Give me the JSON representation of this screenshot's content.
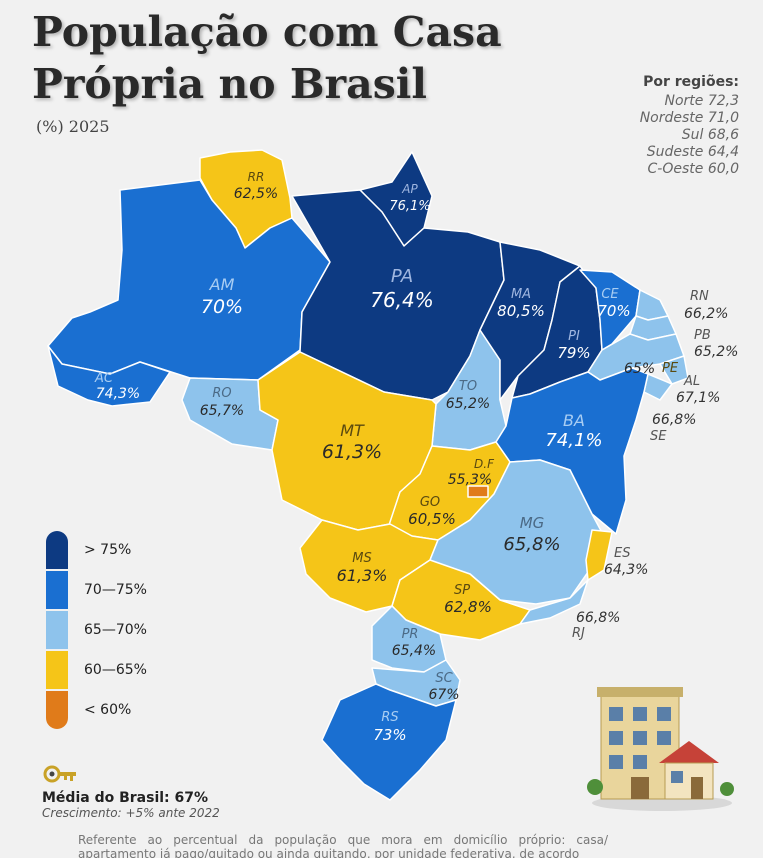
{
  "title_line1": "População com Casa",
  "title_line2": "Própria no Brasil",
  "subtitle": "(%) 2025",
  "regions": {
    "heading": "Por regiões:",
    "items": [
      {
        "label": "Norte 72,3"
      },
      {
        "label": "Nordeste 71,0"
      },
      {
        "label": "Sul 68,6"
      },
      {
        "label": "Sudeste 64,4"
      },
      {
        "label": "C-Oeste 60,0"
      }
    ]
  },
  "colors": {
    "gt75": "#0d3a82",
    "r70_75": "#1a6fd1",
    "r65_70": "#8ec3ec",
    "r60_65": "#f5c518",
    "lt60": "#e07b1a"
  },
  "states": {
    "RR": {
      "code": "RR",
      "value": "62,5%"
    },
    "AP": {
      "code": "AP",
      "value": "76,1%"
    },
    "AM": {
      "code": "AM",
      "value": "70%"
    },
    "PA": {
      "code": "PA",
      "value": "76,4%"
    },
    "MA": {
      "code": "MA",
      "value": "80,5%"
    },
    "CE": {
      "code": "CE",
      "value": "70%"
    },
    "RN": {
      "code": "RN",
      "value": "66,2%"
    },
    "PB": {
      "code": "PB",
      "value": "65,2%"
    },
    "PI": {
      "code": "PI",
      "value": "79%"
    },
    "PE": {
      "code": "PE",
      "value": "65%"
    },
    "AL": {
      "code": "AL",
      "value": "67,1%"
    },
    "SE": {
      "code": "SE",
      "value": "66,8%"
    },
    "AC": {
      "code": "AC",
      "value": "74,3%"
    },
    "RO": {
      "code": "RO",
      "value": "65,7%"
    },
    "TO": {
      "code": "TO",
      "value": "65,2%"
    },
    "BA": {
      "code": "BA",
      "value": "74,1%"
    },
    "MT": {
      "code": "MT",
      "value": "61,3%"
    },
    "DF": {
      "code": "D.F",
      "value": "55,3%"
    },
    "GO": {
      "code": "GO",
      "value": "60,5%"
    },
    "MG": {
      "code": "MG",
      "value": "65,8%"
    },
    "ES": {
      "code": "ES",
      "value": "64,3%"
    },
    "MS": {
      "code": "MS",
      "value": "61,3%"
    },
    "SP": {
      "code": "SP",
      "value": "62,8%"
    },
    "RJ": {
      "code": "RJ",
      "value": "66,8%"
    },
    "PR": {
      "code": "PR",
      "value": "65,4%"
    },
    "SC": {
      "code": "SC",
      "value": "67%"
    },
    "RS": {
      "code": "RS",
      "value": "73%"
    }
  },
  "legend": [
    {
      "label": "> 75%"
    },
    {
      "label": "70—75%"
    },
    {
      "label": "65—70%"
    },
    {
      "label": "60—65%"
    },
    {
      "label": "< 60%"
    }
  ],
  "average": "Média do Brasil: 67%",
  "growth": "Crescimento: +5% ante 2022",
  "note": "Referente ao percentual da população que mora em domicílio próprio: casa/ apartamento já pago/quitado ou ainda quitando, por unidade federativa, de acordo"
}
